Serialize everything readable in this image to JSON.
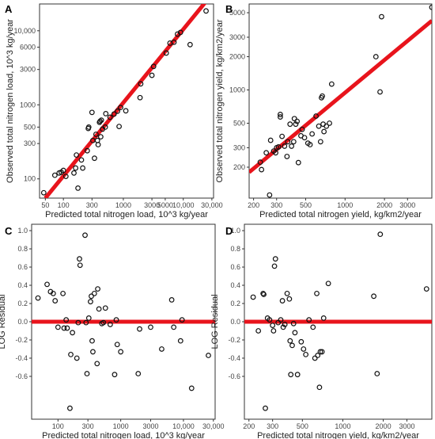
{
  "chart_data": [
    {
      "panel": "A",
      "type": "scatter",
      "xlabel": "Predicted total nitrogen load, 10^3 kg/year",
      "ylabel": "Observed total nitrogen load, 10^3 kg/year",
      "xscale": "log",
      "yscale": "log",
      "xlim": [
        40,
        32000
      ],
      "ylim": [
        55,
        23000
      ],
      "xticks": [
        50,
        100,
        300,
        1000,
        3000,
        5000,
        10000,
        30000
      ],
      "xtick_labels": [
        "50",
        "100",
        "300",
        "1000",
        "3000",
        "5000",
        "10,000",
        "30,000"
      ],
      "yticks": [
        100,
        300,
        500,
        1000,
        3000,
        6000,
        10000
      ],
      "ytick_labels": [
        "100",
        "300",
        "500",
        "1000",
        "3000",
        "6000",
        "10,000"
      ],
      "fit_line": {
        "x": [
          50,
          28000
        ],
        "y": [
          55,
          29000
        ]
      },
      "points": [
        [
          47,
          65
        ],
        [
          72,
          112
        ],
        [
          85,
          120
        ],
        [
          92,
          123
        ],
        [
          100,
          130
        ],
        [
          110,
          108
        ],
        [
          150,
          120
        ],
        [
          160,
          140
        ],
        [
          165,
          210
        ],
        [
          175,
          75
        ],
        [
          200,
          180
        ],
        [
          210,
          140
        ],
        [
          250,
          240
        ],
        [
          260,
          480
        ],
        [
          265,
          500
        ],
        [
          300,
          790
        ],
        [
          310,
          330
        ],
        [
          330,
          190
        ],
        [
          350,
          400
        ],
        [
          370,
          330
        ],
        [
          380,
          290
        ],
        [
          400,
          580
        ],
        [
          410,
          600
        ],
        [
          420,
          370
        ],
        [
          430,
          620
        ],
        [
          450,
          470
        ],
        [
          500,
          500
        ],
        [
          510,
          760
        ],
        [
          600,
          680
        ],
        [
          700,
          750
        ],
        [
          800,
          820
        ],
        [
          850,
          510
        ],
        [
          900,
          920
        ],
        [
          1100,
          830
        ],
        [
          1900,
          1250
        ],
        [
          1950,
          1920
        ],
        [
          3000,
          2500
        ],
        [
          3200,
          3300
        ],
        [
          5200,
          5000
        ],
        [
          6000,
          6800
        ],
        [
          7000,
          7000
        ],
        [
          8000,
          9000
        ],
        [
          9000,
          9500
        ],
        [
          13000,
          6500
        ],
        [
          24000,
          18500
        ]
      ]
    },
    {
      "panel": "B",
      "type": "scatter",
      "xlabel": "Predicted total nitrogen yield, kg/km2/year",
      "ylabel": "Observed total nitrogen yield, kg/km2/year",
      "xscale": "log",
      "yscale": "log",
      "xlim": [
        185,
        4600
      ],
      "ylim": [
        105,
        6000
      ],
      "xticks": [
        200,
        300,
        500,
        1000,
        2000,
        3000
      ],
      "xtick_labels": [
        "200",
        "300",
        "500",
        "1000",
        "2000",
        "3000"
      ],
      "yticks": [
        200,
        300,
        500,
        1000,
        2000,
        3000,
        5000
      ],
      "ytick_labels": [
        "200",
        "300",
        "500",
        "1000",
        "2000",
        "3000",
        "5000"
      ],
      "fit_line": {
        "x": [
          185,
          4600
        ],
        "y": [
          180,
          4230
        ]
      },
      "points": [
        [
          225,
          222
        ],
        [
          230,
          190
        ],
        [
          250,
          270
        ],
        [
          265,
          112
        ],
        [
          270,
          350
        ],
        [
          285,
          280
        ],
        [
          295,
          270
        ],
        [
          300,
          300
        ],
        [
          310,
          305
        ],
        [
          320,
          570
        ],
        [
          320,
          600
        ],
        [
          330,
          380
        ],
        [
          345,
          310
        ],
        [
          360,
          250
        ],
        [
          365,
          340
        ],
        [
          380,
          490
        ],
        [
          390,
          310
        ],
        [
          405,
          340
        ],
        [
          410,
          550
        ],
        [
          420,
          490
        ],
        [
          430,
          520
        ],
        [
          440,
          220
        ],
        [
          460,
          385
        ],
        [
          470,
          440
        ],
        [
          490,
          370
        ],
        [
          520,
          330
        ],
        [
          540,
          320
        ],
        [
          560,
          400
        ],
        [
          600,
          580
        ],
        [
          630,
          470
        ],
        [
          650,
          340
        ],
        [
          660,
          850
        ],
        [
          670,
          880
        ],
        [
          680,
          490
        ],
        [
          690,
          420
        ],
        [
          720,
          470
        ],
        [
          760,
          500
        ],
        [
          790,
          1130
        ],
        [
          1720,
          2000
        ],
        [
          1850,
          960
        ],
        [
          1900,
          4600
        ],
        [
          4600,
          5600
        ]
      ]
    },
    {
      "panel": "C",
      "type": "scatter",
      "xlabel": "Predicted total nitrogen load, 10^3 kg/year",
      "ylabel": "LOG Residual",
      "xscale": "log",
      "xlim": [
        38,
        32000
      ],
      "ylim": [
        -1.07,
        1.07
      ],
      "xticks": [
        100,
        300,
        1000,
        3000,
        10000,
        30000
      ],
      "xtick_labels": [
        "100",
        "300",
        "1000",
        "3000",
        "10,000",
        "30,000"
      ],
      "yticks": [
        -0.6,
        -0.4,
        -0.2,
        0.0,
        0.2,
        0.4,
        0.6,
        0.8,
        1.0
      ],
      "ytick_labels": [
        "-0.6",
        "-0.4",
        "-0.2",
        "0.0",
        "0.2",
        "0.4",
        "0.6",
        "0.8",
        "1.0"
      ],
      "zero_line": 0.0,
      "points": [
        [
          48,
          0.26
        ],
        [
          67,
          0.41
        ],
        [
          76,
          0.33
        ],
        [
          84,
          0.31
        ],
        [
          90,
          0.23
        ],
        [
          100,
          -0.06
        ],
        [
          120,
          0.31
        ],
        [
          125,
          -0.07
        ],
        [
          135,
          0.02
        ],
        [
          140,
          -0.07
        ],
        [
          155,
          -0.95
        ],
        [
          160,
          -0.36
        ],
        [
          170,
          -0.12
        ],
        [
          200,
          -0.4
        ],
        [
          210,
          -0.01
        ],
        [
          220,
          0.69
        ],
        [
          225,
          0.62
        ],
        [
          270,
          0.95
        ],
        [
          280,
          -0.01
        ],
        [
          290,
          -0.57
        ],
        [
          310,
          0.04
        ],
        [
          330,
          0.22
        ],
        [
          340,
          0.28
        ],
        [
          350,
          -0.21
        ],
        [
          360,
          -0.33
        ],
        [
          380,
          0.31
        ],
        [
          420,
          -0.46
        ],
        [
          430,
          0.36
        ],
        [
          450,
          0.14
        ],
        [
          500,
          -0.02
        ],
        [
          530,
          -0.01
        ],
        [
          570,
          0.15
        ],
        [
          680,
          -0.03
        ],
        [
          800,
          -0.58
        ],
        [
          850,
          0.02
        ],
        [
          880,
          -0.25
        ],
        [
          1000,
          -0.33
        ],
        [
          1900,
          -0.57
        ],
        [
          2000,
          -0.08
        ],
        [
          3000,
          -0.06
        ],
        [
          4500,
          -0.3
        ],
        [
          6500,
          0.24
        ],
        [
          7000,
          -0.06
        ],
        [
          9000,
          -0.21
        ],
        [
          9500,
          0.02
        ],
        [
          13500,
          -0.73
        ],
        [
          25000,
          -0.37
        ]
      ]
    },
    {
      "panel": "D",
      "type": "scatter",
      "xlabel": "Predicted total nitrogen yield, kg/km2/year",
      "ylabel": "LOG Residual",
      "xscale": "log",
      "xlim": [
        185,
        4600
      ],
      "ylim": [
        -1.07,
        1.07
      ],
      "xticks": [
        200,
        300,
        500,
        1000,
        2000,
        3000
      ],
      "xtick_labels": [
        "200",
        "300",
        "500",
        "1000",
        "2000",
        "3000"
      ],
      "yticks": [
        -0.6,
        -0.4,
        -0.2,
        0.0,
        0.2,
        0.4,
        0.6,
        0.8,
        1.0
      ],
      "ytick_labels": [
        "-0.6",
        "-0.4",
        "-0.2",
        "0.0",
        "0.2",
        "0.4",
        "0.6",
        "0.8",
        "1.0"
      ],
      "zero_line": 0.0,
      "points": [
        [
          215,
          0.27
        ],
        [
          235,
          -0.1
        ],
        [
          255,
          0.31
        ],
        [
          258,
          0.3
        ],
        [
          265,
          -0.95
        ],
        [
          275,
          0.04
        ],
        [
          285,
          0.02
        ],
        [
          300,
          -0.04
        ],
        [
          305,
          -0.1
        ],
        [
          310,
          0.61
        ],
        [
          315,
          0.69
        ],
        [
          330,
          -0.01
        ],
        [
          345,
          0.02
        ],
        [
          355,
          0.23
        ],
        [
          360,
          -0.06
        ],
        [
          370,
          -0.03
        ],
        [
          385,
          0.31
        ],
        [
          400,
          0.25
        ],
        [
          405,
          -0.21
        ],
        [
          410,
          -0.58
        ],
        [
          420,
          -0.26
        ],
        [
          430,
          -0.02
        ],
        [
          440,
          -0.12
        ],
        [
          460,
          -0.58
        ],
        [
          490,
          -0.22
        ],
        [
          510,
          -0.3
        ],
        [
          530,
          -0.36
        ],
        [
          560,
          0.02
        ],
        [
          600,
          -0.06
        ],
        [
          620,
          -0.4
        ],
        [
          640,
          0.31
        ],
        [
          650,
          -0.37
        ],
        [
          670,
          -0.72
        ],
        [
          680,
          -0.33
        ],
        [
          700,
          -0.33
        ],
        [
          720,
          0.04
        ],
        [
          780,
          0.42
        ],
        [
          1700,
          0.28
        ],
        [
          1800,
          -0.57
        ],
        [
          1900,
          0.96
        ],
        [
          4200,
          0.36
        ]
      ]
    }
  ]
}
